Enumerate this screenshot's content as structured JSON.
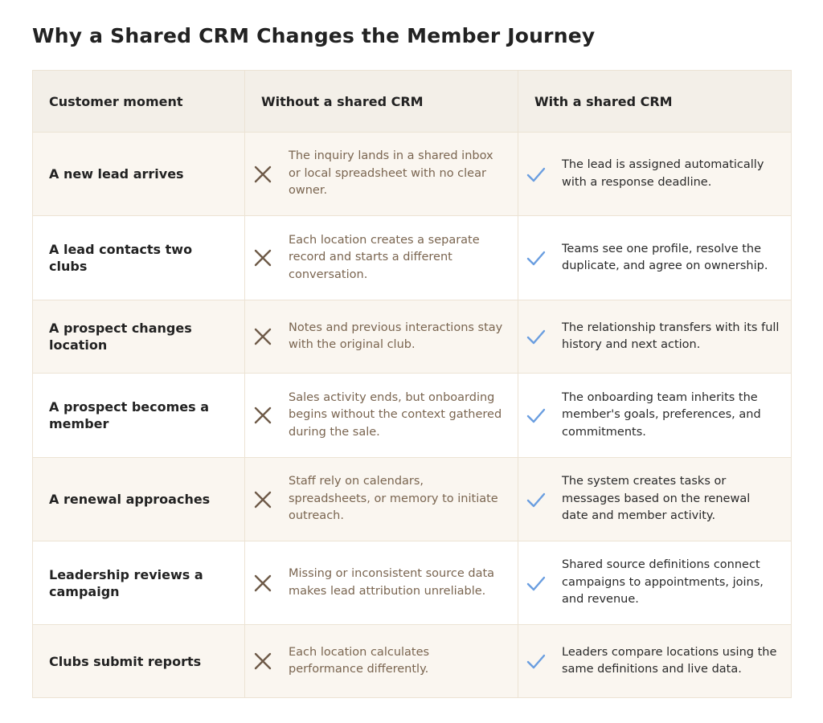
{
  "title": "Why a Shared CRM Changes the Member Journey",
  "headers": {
    "moment": "Customer moment",
    "without": "Without a shared CRM",
    "with": "With a shared CRM"
  },
  "icons": {
    "without": "x-icon",
    "with": "check-icon"
  },
  "colors": {
    "x_mark": "#6e5a48",
    "check_mark": "#6a9ee0",
    "without_text": "#7a6550",
    "header_bg": "#f3efe8",
    "row_alt_bg": "#faf6f0",
    "border": "#ece3d4"
  },
  "rows": [
    {
      "moment": "A new lead arrives",
      "without": "The inquiry lands in a shared inbox or local spreadsheet with no clear owner.",
      "with": "The lead is assigned automatically with a response deadline."
    },
    {
      "moment": "A lead contacts two clubs",
      "without": "Each location creates a separate record and starts a different conversation.",
      "with": "Teams see one profile, resolve the duplicate, and agree on ownership."
    },
    {
      "moment": "A prospect changes location",
      "without": "Notes and previous interactions stay with the original club.",
      "with": "The relationship transfers with its full history and next action."
    },
    {
      "moment": "A prospect becomes a member",
      "without": "Sales activity ends, but onboarding begins without the context gathered during the sale.",
      "with": "The onboarding team inherits the member's goals, preferences, and commitments."
    },
    {
      "moment": "A renewal approaches",
      "without": "Staff rely on calendars, spreadsheets, or memory to initiate outreach.",
      "with": "The system creates tasks or messages based on the renewal date and member activity."
    },
    {
      "moment": "Leadership reviews a campaign",
      "without": "Missing or inconsistent source data makes lead attribution unreliable.",
      "with": "Shared source definitions connect campaigns to appointments, joins, and revenue."
    },
    {
      "moment": "Clubs submit reports",
      "without": "Each location calculates performance differently.",
      "with": "Leaders compare locations using the same definitions and live data."
    }
  ]
}
